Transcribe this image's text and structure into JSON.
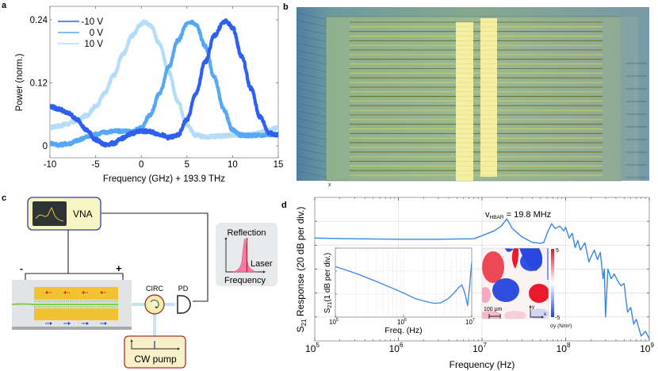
{
  "panel_labels": {
    "a": "a",
    "b": "b",
    "c": "c",
    "d": "d"
  },
  "panel_b": {
    "axis_marker": "x"
  },
  "panel_c": {
    "vna_label": "VNA",
    "minus_label": "-",
    "plus_label": "+",
    "circ_label": "CIRC",
    "pd_label": "PD",
    "pump_label": "CW pump",
    "inset_top_label": "Reflection",
    "inset_laser_label": "Laser",
    "inset_bottom_label": "Frequency",
    "colors": {
      "vna_fill": "#f8f5c4",
      "vna_border": "#3a3a9a",
      "pump_fill": "#f8f0c8",
      "pump_border": "#b03030",
      "gold": "#f1c232",
      "fiber": "#7fd04a",
      "arrow_top": "#cc2222",
      "arrow_bottom": "#2244cc",
      "optic_line": "#8ecbe8"
    }
  },
  "chart_data": [
    {
      "type": "line",
      "panel": "a",
      "title": "",
      "xlabel": "Frequency (GHz) + 193.9 THz",
      "ylabel": "Power (norm.)",
      "xlim": [
        -10,
        15
      ],
      "ylim": [
        -0.015,
        0.265
      ],
      "xticks": [
        -10,
        -5,
        0,
        5,
        10,
        15
      ],
      "xtick_labels": [
        "-10",
        "-5",
        "0",
        "5",
        "10",
        "15"
      ],
      "yticks": [
        0,
        0.12,
        0.24
      ],
      "ytick_labels": [
        "0",
        "0.12",
        "0.24"
      ],
      "legend": "top-left",
      "series": [
        {
          "name": "-10 V",
          "color": "#2f5ff0",
          "x": [
            -10,
            -9,
            -8,
            -7,
            -6,
            -5,
            -4,
            -3,
            -2,
            -1,
            0,
            1,
            2,
            3,
            4,
            5,
            6,
            7,
            8,
            9,
            9.3,
            10,
            11,
            12,
            13,
            14,
            15
          ],
          "y": [
            0.075,
            0.07,
            0.062,
            0.05,
            0.03,
            0.012,
            0.002,
            0.005,
            0.015,
            0.024,
            0.028,
            0.027,
            0.022,
            0.016,
            0.02,
            0.05,
            0.1,
            0.16,
            0.21,
            0.235,
            0.237,
            0.225,
            0.17,
            0.11,
            0.055,
            0.025,
            0.02
          ]
        },
        {
          "name": "0 V",
          "color": "#55a8f5",
          "x": [
            -10,
            -9,
            -8,
            -7,
            -6,
            -5,
            -4,
            -3,
            -2,
            -1,
            0,
            1,
            2,
            3,
            4,
            5,
            5.5,
            6,
            7,
            8,
            9,
            10,
            11,
            12,
            13,
            14,
            15
          ],
          "y": [
            0.005,
            0.002,
            0.004,
            0.01,
            0.017,
            0.022,
            0.026,
            0.028,
            0.028,
            0.027,
            0.035,
            0.06,
            0.1,
            0.15,
            0.2,
            0.232,
            0.236,
            0.23,
            0.19,
            0.13,
            0.07,
            0.03,
            0.02,
            0.02,
            0.02,
            0.022,
            0.022
          ]
        },
        {
          "name": "10 V",
          "color": "#b5dcf8",
          "x": [
            -10,
            -9,
            -8,
            -7,
            -6,
            -5,
            -4,
            -3,
            -2,
            -1,
            0,
            0.3,
            1,
            2,
            3,
            4,
            5,
            6,
            7,
            8,
            9,
            10,
            11,
            12,
            13,
            14,
            15
          ],
          "y": [
            0.035,
            0.038,
            0.042,
            0.048,
            0.058,
            0.075,
            0.1,
            0.135,
            0.175,
            0.21,
            0.232,
            0.236,
            0.23,
            0.195,
            0.14,
            0.085,
            0.04,
            0.02,
            0.017,
            0.018,
            0.019,
            0.02,
            0.021,
            0.022,
            0.025,
            0.03,
            0.035
          ]
        }
      ]
    },
    {
      "type": "line",
      "panel": "d",
      "title": "",
      "xlabel": "Frequency (Hz)",
      "ylabel": "S21 Response (20 dB per div.)",
      "xscale": "log",
      "xlim": [
        100000,
        1000000000
      ],
      "xticks": [
        100000,
        1000000,
        10000000,
        100000000,
        1000000000
      ],
      "xtick_labels": [
        "10",
        "10",
        "10",
        "10",
        "10"
      ],
      "xtick_exponents": [
        "5",
        "6",
        "7",
        "8",
        "9"
      ],
      "ylim_div": [
        0,
        6
      ],
      "grid": true,
      "annotation": {
        "text_main": "v",
        "text_sub": "HBAR",
        "text_rest": " = 19.8 MHz",
        "x": 19800000
      },
      "series": [
        {
          "name": "S21",
          "color": "#3a86e8",
          "x": [
            100000,
            300000,
            1000000,
            3000000,
            8000000,
            10000000,
            14000000,
            17000000,
            19800000,
            23000000,
            30000000,
            40000000,
            50000000,
            55000000,
            60000000,
            68000000,
            75000000,
            85000000,
            95000000,
            100000000,
            110000000,
            120000000,
            130000000,
            140000000,
            150000000,
            170000000,
            190000000,
            200000000,
            220000000,
            240000000,
            260000000,
            280000000,
            290000000,
            300000000,
            320000000,
            350000000,
            380000000,
            420000000,
            460000000,
            500000000,
            550000000,
            600000000,
            650000000,
            700000000,
            800000000,
            900000000,
            1000000000
          ],
          "y": [
            4.3,
            4.27,
            4.25,
            4.25,
            4.27,
            4.4,
            4.6,
            4.8,
            5.1,
            4.7,
            4.35,
            4.12,
            4.08,
            4.12,
            4.5,
            4.9,
            4.7,
            4.8,
            4.6,
            4.75,
            4.3,
            4.5,
            3.9,
            4.2,
            3.8,
            4.1,
            3.3,
            3.5,
            3.8,
            3.4,
            3.7,
            2.6,
            3.0,
            1.0,
            3.0,
            2.6,
            2.8,
            2.5,
            2.3,
            2.4,
            1.2,
            1.4,
            0.7,
            0.9,
            0.2,
            0.4,
            0.1
          ]
        }
      ]
    },
    {
      "type": "line",
      "panel": "d-inset",
      "title": "",
      "xlabel": "Freq. (Hz)",
      "ylabel": "S21 (1 dB per div.)",
      "xscale": "log",
      "xlim": [
        100000,
        10000000
      ],
      "xtick_labels": [
        "10",
        "10",
        "10"
      ],
      "xtick_exponents": [
        "5",
        "6",
        "7"
      ],
      "grid": true,
      "series": [
        {
          "name": "S21",
          "color": "#3a86e8",
          "x": [
            100000,
            200000,
            400000,
            700000,
            1000000,
            1500000,
            2000000,
            2800000,
            3500000,
            4500000,
            5500000,
            6500000,
            7200000,
            8000000,
            8700000,
            9300000,
            10000000
          ],
          "y": [
            2.2,
            1.9,
            1.55,
            1.25,
            1.05,
            0.8,
            0.7,
            0.6,
            0.62,
            0.8,
            1.05,
            1.3,
            1.4,
            1.0,
            0.5,
            1.3,
            2.4
          ]
        }
      ]
    },
    {
      "type": "heatmap",
      "panel": "d-fem",
      "colorbar_max": "5",
      "colorbar_min": "-5",
      "colorbar_label": "σy (N/m²)",
      "scale_bar_label": "100 μm",
      "axis_x_label": "x",
      "axis_y_label": "y"
    }
  ]
}
